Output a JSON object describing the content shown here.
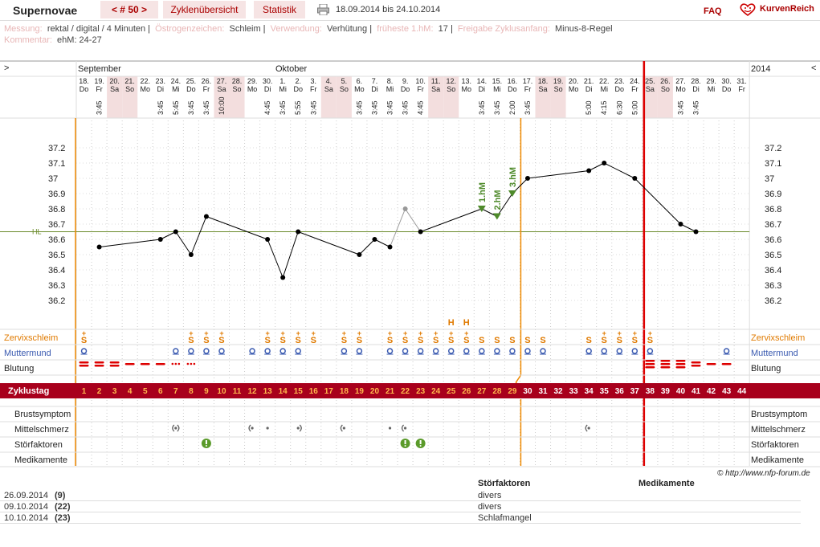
{
  "header": {
    "title": "Supernovae",
    "nav_cycle": "< # 50 >",
    "tab_overview": "Zyklenübersicht",
    "tab_stats": "Statistik",
    "print_icon": "printer-icon",
    "date_range": "18.09.2014 bis 24.10.2014",
    "faq": "FAQ",
    "brand": "KurvenReich",
    "brand_icon": "heart-smiley-icon"
  },
  "meta": {
    "messung_label": "Messung:",
    "messung_value": "rektal / digital / 4 Minuten",
    "oestrogen_label": "Östrogenzeichen:",
    "oestrogen_value": "Schleim",
    "verwendung_label": "Verwendung:",
    "verwendung_value": "Verhütung",
    "frueheste_label": "früheste 1.hM:",
    "frueheste_value": "17",
    "freigabe_label": "Freigabe Zyklusanfang:",
    "freigabe_value": "Minus-8-Regel",
    "kommentar_label": "Kommentar:",
    "kommentar_value": "ehM: 24-27"
  },
  "chart_data": {
    "type": "line",
    "title": "",
    "month_left": "September",
    "month_mid": "Oktober",
    "year": "2014",
    "nav_left": ">",
    "nav_right": "<",
    "days": [
      {
        "d": "18.",
        "w": "Do",
        "t": ""
      },
      {
        "d": "19.",
        "w": "Fr",
        "t": "3:45"
      },
      {
        "d": "20.",
        "w": "Sa",
        "t": ""
      },
      {
        "d": "21.",
        "w": "So",
        "t": ""
      },
      {
        "d": "22.",
        "w": "Mo",
        "t": ""
      },
      {
        "d": "23.",
        "w": "Di",
        "t": "3:45"
      },
      {
        "d": "24.",
        "w": "Mi",
        "t": "5:45"
      },
      {
        "d": "25.",
        "w": "Do",
        "t": "3:45"
      },
      {
        "d": "26.",
        "w": "Fr",
        "t": "3:45"
      },
      {
        "d": "27.",
        "w": "Sa",
        "t": "10:00"
      },
      {
        "d": "28.",
        "w": "So",
        "t": ""
      },
      {
        "d": "29.",
        "w": "Mo",
        "t": ""
      },
      {
        "d": "30.",
        "w": "Di",
        "t": "4:45"
      },
      {
        "d": "1.",
        "w": "Mi",
        "t": "3:45"
      },
      {
        "d": "2.",
        "w": "Do",
        "t": "5:55"
      },
      {
        "d": "3.",
        "w": "Fr",
        "t": "3:45"
      },
      {
        "d": "4.",
        "w": "Sa",
        "t": ""
      },
      {
        "d": "5.",
        "w": "So",
        "t": ""
      },
      {
        "d": "6.",
        "w": "Mo",
        "t": "3:45"
      },
      {
        "d": "7.",
        "w": "Di",
        "t": "3:45"
      },
      {
        "d": "8.",
        "w": "Mi",
        "t": "3:45"
      },
      {
        "d": "9.",
        "w": "Do",
        "t": "3:45"
      },
      {
        "d": "10.",
        "w": "Fr",
        "t": "4:45"
      },
      {
        "d": "11.",
        "w": "Sa",
        "t": ""
      },
      {
        "d": "12.",
        "w": "So",
        "t": ""
      },
      {
        "d": "13.",
        "w": "Mo",
        "t": ""
      },
      {
        "d": "14.",
        "w": "Di",
        "t": "3:45"
      },
      {
        "d": "15.",
        "w": "Mi",
        "t": "3:45"
      },
      {
        "d": "16.",
        "w": "Do",
        "t": "2:00"
      },
      {
        "d": "17.",
        "w": "Fr",
        "t": "3:45"
      },
      {
        "d": "18.",
        "w": "Sa",
        "t": ""
      },
      {
        "d": "19.",
        "w": "So",
        "t": ""
      },
      {
        "d": "20.",
        "w": "Mo",
        "t": ""
      },
      {
        "d": "21.",
        "w": "Di",
        "t": "5:00"
      },
      {
        "d": "22.",
        "w": "Mi",
        "t": "4:15"
      },
      {
        "d": "23.",
        "w": "Do",
        "t": "6:30"
      },
      {
        "d": "24.",
        "w": "Fr",
        "t": "5:00"
      },
      {
        "d": "25.",
        "w": "Sa",
        "t": ""
      },
      {
        "d": "26.",
        "w": "So",
        "t": ""
      },
      {
        "d": "27.",
        "w": "Mo",
        "t": "3:45"
      },
      {
        "d": "28.",
        "w": "Di",
        "t": "3:45"
      },
      {
        "d": "29.",
        "w": "Mi",
        "t": ""
      },
      {
        "d": "30.",
        "w": "Do",
        "t": ""
      },
      {
        "d": "31.",
        "w": "Fr",
        "t": ""
      }
    ],
    "weekend_days": [
      3,
      4,
      10,
      11,
      17,
      18,
      24,
      25,
      31,
      32,
      38,
      39
    ],
    "y_ticks": [
      36.2,
      36.3,
      36.4,
      36.5,
      36.6,
      36.7,
      36.8,
      36.9,
      37.0,
      37.1,
      37.2
    ],
    "y_tick_labels": [
      "36.2",
      "36.3",
      "36.4",
      "36.5",
      "36.6",
      "36.7",
      "36.8",
      "36.9",
      "37",
      "37.1",
      "37.2"
    ],
    "ylim": [
      36.1,
      37.3
    ],
    "temperatures": [
      {
        "day": 2,
        "v": 36.55
      },
      {
        "day": 6,
        "v": 36.6
      },
      {
        "day": 7,
        "v": 36.65
      },
      {
        "day": 8,
        "v": 36.5
      },
      {
        "day": 9,
        "v": 36.75
      },
      {
        "day": 13,
        "v": 36.6
      },
      {
        "day": 14,
        "v": 36.35
      },
      {
        "day": 15,
        "v": 36.65
      },
      {
        "day": 19,
        "v": 36.5
      },
      {
        "day": 20,
        "v": 36.6
      },
      {
        "day": 21,
        "v": 36.55
      },
      {
        "day": 22,
        "v": 36.8,
        "excluded": true
      },
      {
        "day": 23,
        "v": 36.65
      },
      {
        "day": 27,
        "v": 36.8,
        "hm": "1.hM"
      },
      {
        "day": 28,
        "v": 36.75,
        "hm": "2.hM"
      },
      {
        "day": 29,
        "v": 36.9,
        "hm": "3.hM"
      },
      {
        "day": 30,
        "v": 37.0
      },
      {
        "day": 34,
        "v": 37.05
      },
      {
        "day": 35,
        "v": 37.1
      },
      {
        "day": 37,
        "v": 37.0
      },
      {
        "day": 40,
        "v": 36.7
      },
      {
        "day": 41,
        "v": 36.65
      }
    ],
    "cover_line": 36.65,
    "cover_line_label": "HL",
    "ovulation_day": 29,
    "cycle_end_day": 37,
    "row_labels": {
      "zervix": "Zervixschleim",
      "muttermund": "Muttermund",
      "blutung": "Blutung",
      "zyklustag": "Zyklustag",
      "brust": "Brustsymptom",
      "mittel": "Mittelschmerz",
      "stoer": "Störfaktoren",
      "medi": "Medikamente"
    },
    "zervix": [
      {
        "day": 1,
        "s": "S+"
      },
      {
        "day": 8,
        "s": "S+"
      },
      {
        "day": 9,
        "s": "S+"
      },
      {
        "day": 10,
        "s": "S+"
      },
      {
        "day": 13,
        "s": "S+"
      },
      {
        "day": 14,
        "s": "S+"
      },
      {
        "day": 15,
        "s": "S+"
      },
      {
        "day": 16,
        "s": "S+"
      },
      {
        "day": 18,
        "s": "S+"
      },
      {
        "day": 19,
        "s": "S+"
      },
      {
        "day": 21,
        "s": "S+"
      },
      {
        "day": 22,
        "s": "S+"
      },
      {
        "day": 23,
        "s": "S+"
      },
      {
        "day": 24,
        "s": "S+"
      },
      {
        "day": 25,
        "s": "S+"
      },
      {
        "day": 26,
        "s": "S+"
      },
      {
        "day": 27,
        "s": "S"
      },
      {
        "day": 28,
        "s": "S"
      },
      {
        "day": 29,
        "s": "S"
      },
      {
        "day": 30,
        "s": "S"
      },
      {
        "day": 31,
        "s": "S"
      },
      {
        "day": 34,
        "s": "S"
      },
      {
        "day": 35,
        "s": "S+"
      },
      {
        "day": 36,
        "s": "S+"
      },
      {
        "day": 37,
        "s": "S+"
      },
      {
        "day": 38,
        "s": "S+"
      }
    ],
    "zervix_h_days": [
      25,
      26
    ],
    "zervix_h": "H",
    "muttermund_days": [
      1,
      7,
      8,
      9,
      10,
      12,
      13,
      14,
      15,
      18,
      19,
      21,
      22,
      23,
      24,
      25,
      26,
      27,
      28,
      29,
      30,
      31,
      34,
      35,
      36,
      37,
      38,
      43
    ],
    "blutung": [
      {
        "day": 1,
        "n": 2
      },
      {
        "day": 2,
        "n": 2
      },
      {
        "day": 3,
        "n": 2
      },
      {
        "day": 4,
        "n": 1
      },
      {
        "day": 5,
        "n": 1
      },
      {
        "day": 6,
        "n": 1
      },
      {
        "day": 7,
        "dots": true
      },
      {
        "day": 8,
        "dots": true
      },
      {
        "day": 38,
        "n": 3
      },
      {
        "day": 39,
        "n": 3
      },
      {
        "day": 40,
        "n": 3
      },
      {
        "day": 41,
        "n": 2
      },
      {
        "day": 42,
        "n": 1
      },
      {
        "day": 43,
        "n": 1
      }
    ],
    "zyklustage": [
      "1",
      "2",
      "3",
      "4",
      "5",
      "6",
      "7",
      "8",
      "9",
      "10",
      "11",
      "12",
      "13",
      "14",
      "15",
      "16",
      "17",
      "18",
      "19",
      "20",
      "21",
      "22",
      "23",
      "24",
      "25",
      "26",
      "27",
      "28",
      "29",
      "30",
      "31",
      "32",
      "33",
      "34",
      "35",
      "36",
      "37",
      "38",
      "39",
      "40",
      "41",
      "42",
      "43",
      "44"
    ],
    "mittelschmerz": [
      {
        "day": 7,
        "k": "both"
      },
      {
        "day": 12,
        "k": "left"
      },
      {
        "day": 13,
        "k": "dot"
      },
      {
        "day": 15,
        "k": "right"
      },
      {
        "day": 18,
        "k": "left"
      },
      {
        "day": 21,
        "k": "dot"
      },
      {
        "day": 22,
        "k": "left"
      },
      {
        "day": 34,
        "k": "left"
      }
    ],
    "stoerfaktoren_days": [
      9,
      22,
      23
    ],
    "stoer_icon": "exclamation-icon"
  },
  "copyright": "© http://www.nfp-forum.de",
  "footer": {
    "col_stoer": "Störfaktoren",
    "col_medi": "Medikamente",
    "rows": [
      {
        "date": "26.09.2014",
        "num": "(9)",
        "stoer": "divers"
      },
      {
        "date": "09.10.2014",
        "num": "(22)",
        "stoer": "divers"
      },
      {
        "date": "10.10.2014",
        "num": "(23)",
        "stoer": "Schlafmangel"
      }
    ]
  }
}
